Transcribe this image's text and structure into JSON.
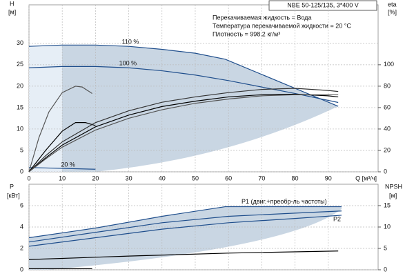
{
  "chart_data": [
    {
      "type": "line",
      "title": "NBE 50-125/135, 3*400 V",
      "notes": [
        "Перекачиваемая жидкость = Вода",
        "Температура перекачиваемой жидкости = 20 °C",
        "Плотность = 998.2 кг/м³"
      ],
      "y_label": "H",
      "y_unit": "[м]",
      "y2_label": "eta",
      "y2_unit": "[%]",
      "x_label": "Q [м³/ч]",
      "xlim": [
        0,
        105
      ],
      "xticks": [
        0,
        10,
        20,
        30,
        40,
        50,
        60,
        70,
        80,
        90
      ],
      "ylim": [
        0,
        39
      ],
      "yticks": [
        0,
        5,
        10,
        15,
        20,
        25,
        30
      ],
      "y2lim": [
        0,
        156
      ],
      "y2ticks": [
        0,
        20,
        40,
        60,
        80,
        100
      ],
      "grid": true,
      "series": [
        {
          "name": "110 %",
          "color": "#1f4e8c",
          "x": [
            0,
            10,
            20,
            30,
            40,
            50,
            59,
            93
          ],
          "values": [
            29.3,
            29.6,
            29.6,
            29.3,
            28.6,
            27.7,
            26.3,
            15.3
          ]
        },
        {
          "name": "100 %",
          "color": "#1f4e8c",
          "x": [
            0,
            10,
            20,
            30,
            40,
            50,
            60,
            70,
            80,
            93
          ],
          "values": [
            24.3,
            24.6,
            24.6,
            24.3,
            23.6,
            22.6,
            21.3,
            19.8,
            18.3,
            16.2
          ]
        },
        {
          "name": "20 %",
          "color": "#1f4e8c",
          "x": [
            0,
            20
          ],
          "values": [
            1.0,
            0.6
          ]
        },
        {
          "color": "#555555",
          "x": [
            0,
            3,
            6,
            10,
            14,
            16,
            19
          ],
          "values": [
            0,
            8,
            14,
            18.5,
            20,
            19.8,
            18.3
          ]
        },
        {
          "color": "#000000",
          "x": [
            0,
            5,
            10,
            14,
            17,
            20
          ],
          "values": [
            0,
            5,
            9.5,
            11.5,
            11.5,
            10.8
          ]
        },
        {
          "color": "#000000",
          "axis": "y2",
          "x": [
            0,
            5,
            10,
            20,
            30,
            40,
            50,
            60,
            70,
            80,
            90,
            93
          ],
          "values": [
            0,
            13,
            25,
            42,
            53,
            61,
            66,
            70,
            72,
            72.5,
            71,
            70
          ]
        },
        {
          "color": "#333333",
          "axis": "y2",
          "x": [
            0,
            5,
            10,
            20,
            30,
            40,
            50,
            60,
            70,
            80,
            90,
            93
          ],
          "values": [
            0,
            15,
            28,
            46,
            57,
            65,
            70,
            74,
            77,
            78,
            76,
            75
          ]
        },
        {
          "color": "#555555",
          "axis": "y2",
          "x": [
            0,
            5,
            10,
            20,
            30,
            40,
            50,
            60,
            70,
            80,
            90,
            93
          ],
          "values": [
            0,
            12,
            23,
            39,
            50,
            58,
            64,
            68,
            71,
            72,
            72,
            72
          ]
        }
      ]
    },
    {
      "type": "line",
      "y_label": "P",
      "y_unit": "[кВт]",
      "y2_label": "NPSH",
      "y2_unit": "[м]",
      "xlim": [
        0,
        105
      ],
      "xticks": [
        0,
        10,
        20,
        30,
        40,
        50,
        60,
        70,
        80,
        90
      ],
      "ylim": [
        0,
        8
      ],
      "yticks": [
        0,
        2,
        4,
        6
      ],
      "y2lim": [
        0,
        20
      ],
      "y2ticks": [
        0,
        5,
        10,
        15
      ],
      "grid": true,
      "series": [
        {
          "name": "P1 (двиг.+преобр-ль частоты)",
          "color": "#1f4e8c",
          "x": [
            0,
            20,
            40,
            59,
            80,
            94
          ],
          "values": [
            3.0,
            3.9,
            5.0,
            5.9,
            5.9,
            5.9
          ]
        },
        {
          "color": "#1f4e8c",
          "x": [
            0,
            20,
            40,
            60,
            80,
            94
          ],
          "values": [
            2.6,
            3.5,
            4.4,
            5.0,
            5.3,
            5.5
          ]
        },
        {
          "name": "P2",
          "color": "#1f4e8c",
          "x": [
            0,
            20,
            40,
            60,
            80,
            94
          ],
          "values": [
            2.2,
            3.0,
            3.8,
            4.4,
            4.8,
            5.1
          ]
        },
        {
          "color": "#000000",
          "axis": "y2",
          "x": [
            0,
            30,
            60,
            93
          ],
          "values": [
            2.4,
            3.2,
            3.9,
            4.4
          ]
        },
        {
          "color": "#000000",
          "x": [
            0,
            19
          ],
          "values": [
            0.1,
            0.1
          ]
        }
      ]
    }
  ]
}
